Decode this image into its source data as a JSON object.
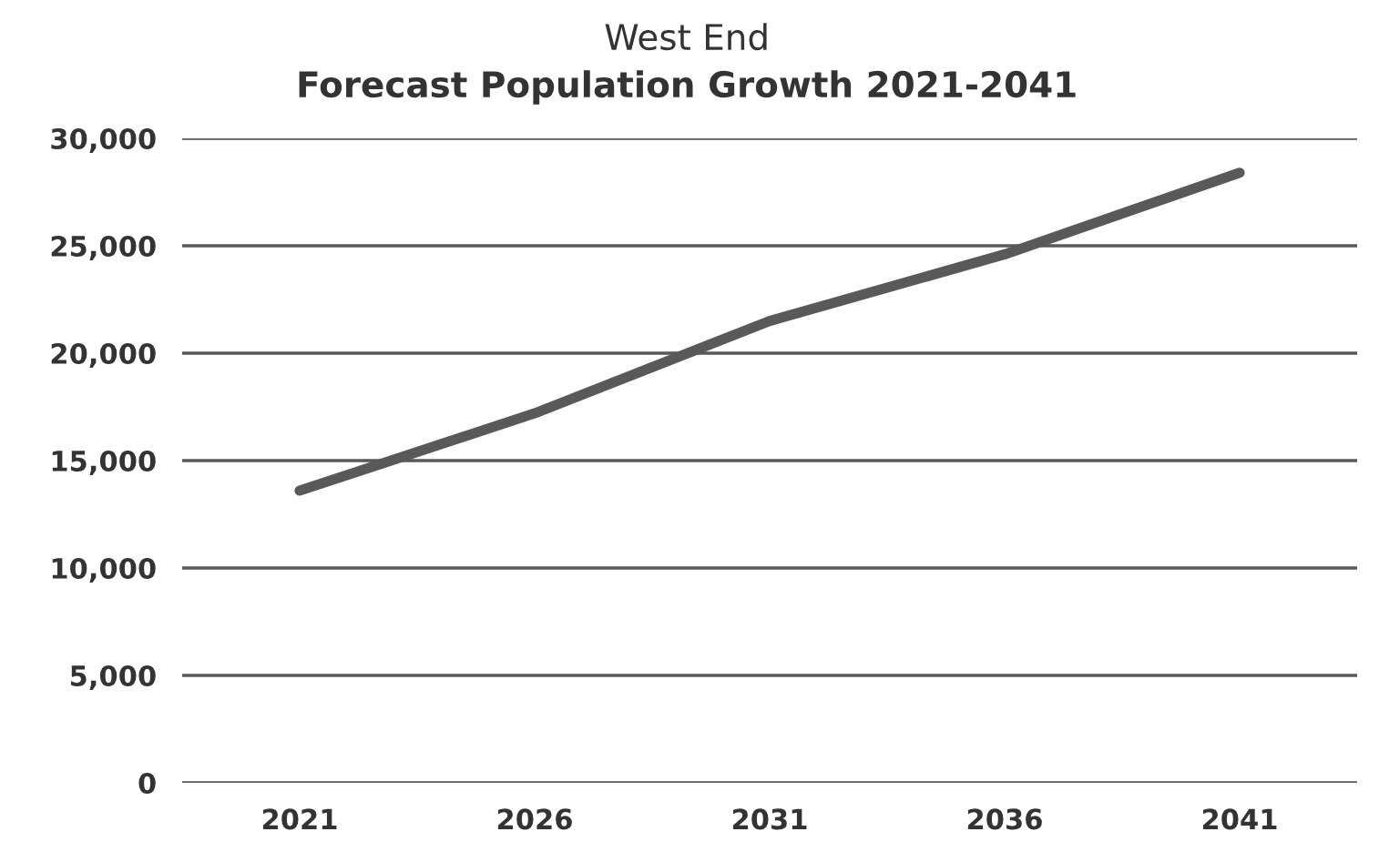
{
  "chart_data": {
    "type": "line",
    "title": "West End",
    "subtitle": "Forecast Population Growth 2021-2041",
    "categories": [
      "2021",
      "2026",
      "2031",
      "2036",
      "2041"
    ],
    "series": [
      {
        "color": "#595959",
        "values": [
          13600,
          17200,
          21500,
          24600,
          28400
        ]
      }
    ],
    "ylim": [
      0,
      30000
    ],
    "yticks": [
      {
        "value": 0,
        "label": "0"
      },
      {
        "value": 5000,
        "label": "5,000"
      },
      {
        "value": 10000,
        "label": "10,000"
      },
      {
        "value": 15000,
        "label": "15,000"
      },
      {
        "value": 20000,
        "label": "20,000"
      },
      {
        "value": 25000,
        "label": "25,000"
      },
      {
        "value": 30000,
        "label": "30,000"
      }
    ],
    "grid": "y",
    "legend": false,
    "marker": "none",
    "line_style": "solid"
  }
}
